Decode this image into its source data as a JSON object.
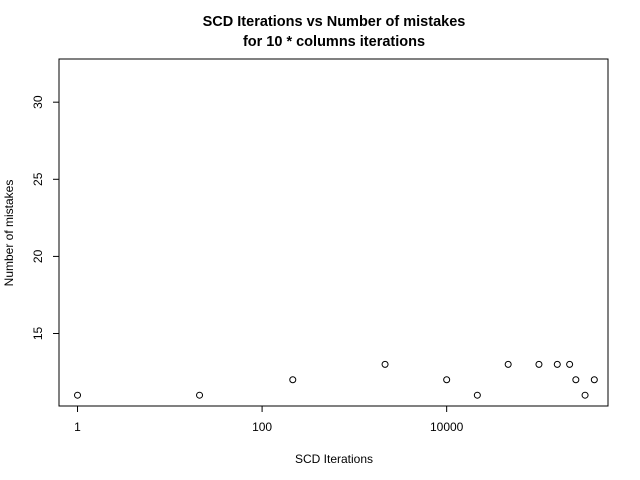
{
  "chart_data": {
    "type": "scatter",
    "title": "SCD Iterations vs Number of mistakes",
    "subtitle": "for 10 * columns iterations",
    "xlabel": "SCD Iterations",
    "ylabel": "Number of mistakes",
    "x_scale": "log10",
    "xlim": [
      0.63,
      560000
    ],
    "ylim": [
      10.3,
      32.8
    ],
    "x_ticks": [
      {
        "value": 1,
        "label": "1"
      },
      {
        "value": 100,
        "label": "100"
      },
      {
        "value": 10000,
        "label": "10000"
      }
    ],
    "y_ticks": [
      {
        "value": 15,
        "label": "15"
      },
      {
        "value": 20,
        "label": "20"
      },
      {
        "value": 25,
        "label": "25"
      },
      {
        "value": 30,
        "label": "30"
      }
    ],
    "grid": false,
    "legend": "none",
    "x": [
      1,
      21,
      215,
      2150,
      10000,
      21500,
      46400,
      100000,
      158000,
      215000,
      251000,
      316000,
      398000
    ],
    "y": [
      11,
      11,
      12,
      13,
      12,
      11,
      13,
      13,
      13,
      13,
      12,
      11,
      12
    ]
  }
}
